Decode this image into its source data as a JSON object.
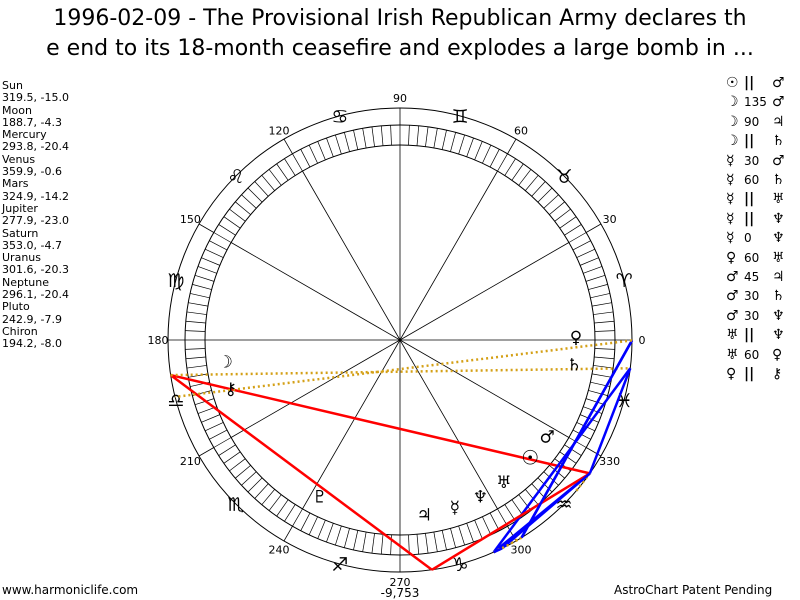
{
  "title": "1996-02-09 - The Provisional Irish Republican Army declares th\ne end to its 18-month ceasefire and explodes a large bomb in ...",
  "planets": [
    {
      "name": "Sun",
      "pos": "319.5, -15.0",
      "lon": 319.5,
      "glyph": "☉"
    },
    {
      "name": "Moon",
      "pos": "188.7, -4.3",
      "lon": 188.7,
      "glyph": "☽"
    },
    {
      "name": "Mercury",
      "pos": "293.8, -20.4",
      "lon": 293.8,
      "glyph": "☿"
    },
    {
      "name": "Venus",
      "pos": "359.9, -0.6",
      "lon": 359.9,
      "glyph": "♀"
    },
    {
      "name": "Mars",
      "pos": "324.9, -14.2",
      "lon": 324.9,
      "glyph": "♂"
    },
    {
      "name": "Jupiter",
      "pos": "277.9, -23.0",
      "lon": 277.9,
      "glyph": "♃"
    },
    {
      "name": "Saturn",
      "pos": "353.0, -4.7",
      "lon": 353.0,
      "glyph": "♄"
    },
    {
      "name": "Uranus",
      "pos": "301.6, -20.3",
      "lon": 301.6,
      "glyph": "♅"
    },
    {
      "name": "Neptune",
      "pos": "296.1, -20.4",
      "lon": 296.1,
      "glyph": "♆"
    },
    {
      "name": "Pluto",
      "pos": "242.9, -7.9",
      "lon": 242.9,
      "glyph": "♇"
    },
    {
      "name": "Chiron",
      "pos": "194.2, -8.0",
      "lon": 194.2,
      "glyph": "⚷"
    }
  ],
  "aspects": [
    {
      "p1": "☉",
      "a": "||",
      "p2": "♂"
    },
    {
      "p1": "☽",
      "a": "135",
      "p2": "♂"
    },
    {
      "p1": "☽",
      "a": "90",
      "p2": "♃"
    },
    {
      "p1": "☽",
      "a": "||",
      "p2": "♄"
    },
    {
      "p1": "☿",
      "a": "30",
      "p2": "♂"
    },
    {
      "p1": "☿",
      "a": "60",
      "p2": "♄"
    },
    {
      "p1": "☿",
      "a": "||",
      "p2": "♅"
    },
    {
      "p1": "☿",
      "a": "||",
      "p2": "♆"
    },
    {
      "p1": "☿",
      "a": "0",
      "p2": "♆"
    },
    {
      "p1": "♀",
      "a": "60",
      "p2": "♅"
    },
    {
      "p1": "♂",
      "a": "45",
      "p2": "♃"
    },
    {
      "p1": "♂",
      "a": "30",
      "p2": "♄"
    },
    {
      "p1": "♂",
      "a": "30",
      "p2": "♆"
    },
    {
      "p1": "♅",
      "a": "||",
      "p2": "♆"
    },
    {
      "p1": "♅",
      "a": "60",
      "p2": "♀"
    },
    {
      "p1": "♀",
      "a": "||",
      "p2": "⚷"
    }
  ],
  "wheel": {
    "degree_labels": [
      "0",
      "30",
      "60",
      "90",
      "120",
      "150",
      "180",
      "210",
      "240",
      "270",
      "300",
      "330"
    ],
    "signs": [
      "♈",
      "♉",
      "♊",
      "♋",
      "♌",
      "♍",
      "♎",
      "♏",
      "♐",
      "♑",
      "♒",
      "♓"
    ],
    "bottom_value": "-9,753"
  },
  "colors": {
    "hard": "#ff0000",
    "soft": "#0000ff",
    "parallel": "#d4a017"
  },
  "footer": {
    "left": "www.harmoniclife.com",
    "right": "AstroChart Patent Pending"
  }
}
